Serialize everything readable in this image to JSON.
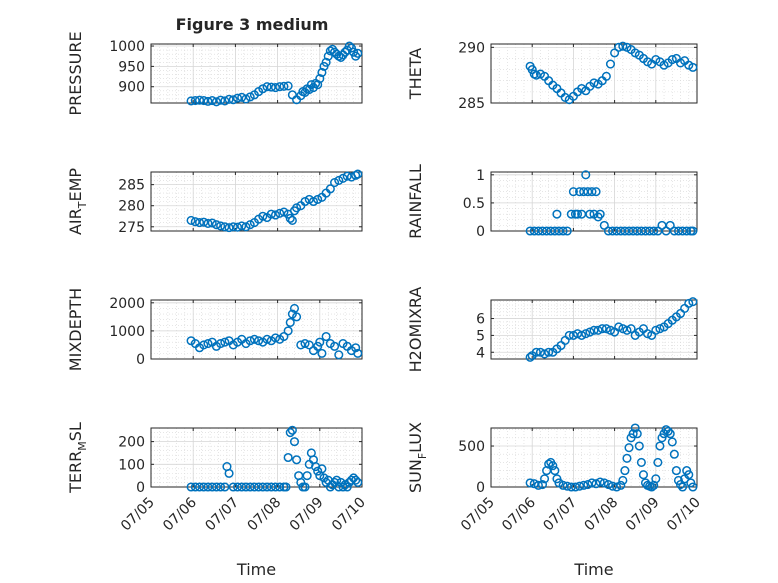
{
  "figure_title": "Figure 3 medium",
  "chart_data": [
    {
      "id": "pressure",
      "type": "scatter",
      "ylabel": "PRESSURE",
      "ylabel_sub": "",
      "ylabel_tail": "",
      "xlabel": "",
      "xlim": [
        "07/05",
        "07/10"
      ],
      "ylim": [
        860,
        1005
      ],
      "yticks": [
        900,
        950,
        1000
      ],
      "ytick_labels": [
        "900",
        "950",
        "1000"
      ],
      "xtick_labels": [],
      "grid": true,
      "x": [
        0.95,
        1.05,
        1.15,
        1.25,
        1.35,
        1.45,
        1.55,
        1.65,
        1.75,
        1.85,
        1.95,
        2.05,
        2.15,
        2.25,
        2.35,
        2.45,
        2.55,
        2.65,
        2.75,
        2.85,
        2.95,
        3.05,
        3.15,
        3.25,
        3.35,
        3.45,
        3.55,
        3.6,
        3.65,
        3.7,
        3.75,
        3.8,
        3.85,
        3.9,
        3.95,
        4.0,
        4.05,
        4.1,
        4.15,
        4.2,
        4.25,
        4.3,
        4.35,
        4.4,
        4.45,
        4.5,
        4.55,
        4.6,
        4.65,
        4.7,
        4.75,
        4.8,
        4.85,
        4.9
      ],
      "y": [
        865,
        866,
        867,
        866,
        864,
        866,
        863,
        867,
        865,
        869,
        868,
        872,
        874,
        870,
        875,
        880,
        888,
        895,
        900,
        899,
        898,
        900,
        901,
        902,
        880,
        868,
        878,
        888,
        886,
        895,
        893,
        905,
        898,
        908,
        905,
        920,
        935,
        950,
        960,
        975,
        988,
        992,
        985,
        980,
        975,
        972,
        978,
        985,
        990,
        1000,
        995,
        985,
        975,
        982
      ]
    },
    {
      "id": "theta",
      "type": "scatter",
      "ylabel": "THETA",
      "ylabel_sub": "",
      "ylabel_tail": "",
      "xlabel": "",
      "xlim": [
        "07/05",
        "07/10"
      ],
      "ylim": [
        285,
        290.3
      ],
      "yticks": [
        285,
        290
      ],
      "ytick_labels": [
        "285",
        "290"
      ],
      "xtick_labels": [],
      "grid": true,
      "x": [
        0.95,
        1.0,
        1.05,
        1.1,
        1.2,
        1.3,
        1.4,
        1.5,
        1.6,
        1.7,
        1.8,
        1.9,
        2.0,
        2.1,
        2.2,
        2.3,
        2.4,
        2.5,
        2.6,
        2.7,
        2.8,
        2.9,
        3.0,
        3.1,
        3.2,
        3.3,
        3.4,
        3.5,
        3.6,
        3.7,
        3.8,
        3.9,
        4.0,
        4.1,
        4.2,
        4.3,
        4.4,
        4.5,
        4.6,
        4.7,
        4.8,
        4.9
      ],
      "y": [
        288.3,
        288.0,
        287.6,
        287.5,
        287.6,
        287.4,
        287.0,
        286.6,
        286.3,
        285.9,
        285.5,
        285.3,
        285.6,
        286.0,
        286.3,
        286.1,
        286.5,
        286.8,
        286.7,
        287.0,
        287.4,
        288.5,
        289.5,
        290.0,
        290.1,
        290.0,
        289.8,
        289.5,
        289.3,
        289.0,
        288.7,
        288.5,
        288.9,
        288.7,
        288.4,
        288.6,
        288.9,
        289.0,
        288.6,
        288.8,
        288.4,
        288.2
      ]
    },
    {
      "id": "air_temp",
      "type": "scatter",
      "ylabel": "AIR",
      "ylabel_sub": "T",
      "ylabel_tail": "EMP",
      "xlabel": "",
      "xlim": [
        "07/05",
        "07/10"
      ],
      "ylim": [
        274,
        288
      ],
      "yticks": [
        275,
        280,
        285
      ],
      "ytick_labels": [
        "275",
        "280",
        "285"
      ],
      "xtick_labels": [],
      "grid": true,
      "x": [
        0.95,
        1.05,
        1.15,
        1.25,
        1.35,
        1.45,
        1.55,
        1.65,
        1.75,
        1.85,
        1.95,
        2.05,
        2.15,
        2.25,
        2.35,
        2.45,
        2.55,
        2.65,
        2.75,
        2.85,
        2.95,
        3.05,
        3.15,
        3.25,
        3.3,
        3.35,
        3.4,
        3.45,
        3.55,
        3.65,
        3.75,
        3.85,
        3.95,
        4.05,
        4.15,
        4.25,
        4.35,
        4.45,
        4.55,
        4.65,
        4.75,
        4.85,
        4.9
      ],
      "y": [
        276.5,
        276.2,
        276.0,
        276.1,
        275.8,
        275.9,
        275.5,
        275.2,
        275.0,
        274.8,
        275.0,
        274.9,
        275.2,
        275.0,
        275.5,
        276.0,
        276.8,
        277.5,
        277.2,
        278.0,
        277.8,
        278.2,
        278.5,
        278.0,
        277.0,
        276.5,
        278.8,
        279.5,
        280.0,
        281.0,
        281.5,
        281.0,
        281.5,
        282.0,
        283.0,
        284.0,
        285.5,
        286.0,
        286.5,
        287.0,
        286.8,
        287.2,
        287.5
      ]
    },
    {
      "id": "rainfall",
      "type": "scatter",
      "ylabel": "RAINFALL",
      "ylabel_sub": "",
      "ylabel_tail": "",
      "xlabel": "",
      "xlim": [
        "07/05",
        "07/10"
      ],
      "ylim": [
        0,
        1.05
      ],
      "yticks": [
        0,
        0.5,
        1
      ],
      "ytick_labels": [
        "0",
        "0.5",
        "1"
      ],
      "xtick_labels": [],
      "grid": true,
      "x": [
        0.95,
        1.05,
        1.15,
        1.25,
        1.35,
        1.45,
        1.55,
        1.6,
        1.65,
        1.75,
        1.85,
        1.95,
        2.0,
        2.05,
        2.1,
        2.15,
        2.2,
        2.25,
        2.3,
        2.35,
        2.4,
        2.45,
        2.5,
        2.55,
        2.6,
        2.65,
        2.75,
        2.85,
        2.95,
        3.05,
        3.15,
        3.25,
        3.35,
        3.45,
        3.55,
        3.65,
        3.75,
        3.85,
        3.95,
        4.05,
        4.15,
        4.25,
        4.35,
        4.45,
        4.55,
        4.65,
        4.75,
        4.85,
        4.9
      ],
      "y": [
        0,
        0,
        0,
        0,
        0,
        0,
        0,
        0.3,
        0,
        0,
        0,
        0.3,
        0.7,
        0.3,
        0.3,
        0.7,
        0.3,
        0.7,
        1.0,
        0.7,
        0.3,
        0.7,
        0.3,
        0.7,
        0.25,
        0.3,
        0.1,
        0,
        0,
        0,
        0,
        0,
        0,
        0,
        0,
        0,
        0,
        0,
        0,
        0,
        0.1,
        0,
        0.1,
        0,
        0,
        0,
        0,
        0,
        0
      ]
    },
    {
      "id": "mixdepth",
      "type": "scatter",
      "ylabel": "MIXDEPTH",
      "ylabel_sub": "",
      "ylabel_tail": "",
      "xlabel": "",
      "xlim": [
        "07/05",
        "07/10"
      ],
      "ylim": [
        0,
        2100
      ],
      "yticks": [
        0,
        1000,
        2000
      ],
      "ytick_labels": [
        "0",
        "1000",
        "2000"
      ],
      "xtick_labels": [],
      "grid": true,
      "x": [
        0.95,
        1.05,
        1.15,
        1.25,
        1.35,
        1.45,
        1.55,
        1.65,
        1.75,
        1.85,
        1.95,
        2.05,
        2.15,
        2.25,
        2.35,
        2.45,
        2.55,
        2.65,
        2.75,
        2.85,
        2.95,
        3.05,
        3.15,
        3.25,
        3.3,
        3.35,
        3.4,
        3.45,
        3.55,
        3.65,
        3.75,
        3.85,
        3.95,
        4.0,
        4.05,
        4.15,
        4.25,
        4.35,
        4.45,
        4.55,
        4.65,
        4.75,
        4.85,
        4.9
      ],
      "y": [
        650,
        550,
        400,
        500,
        550,
        600,
        450,
        550,
        600,
        650,
        500,
        600,
        700,
        550,
        650,
        700,
        650,
        600,
        700,
        650,
        750,
        700,
        800,
        1000,
        1300,
        1600,
        1800,
        1500,
        500,
        550,
        500,
        300,
        450,
        600,
        200,
        800,
        550,
        450,
        150,
        550,
        450,
        300,
        400,
        200
      ]
    },
    {
      "id": "h2omixra",
      "type": "scatter",
      "ylabel": "H2OMIXRA",
      "ylabel_sub": "",
      "ylabel_tail": "",
      "xlabel": "",
      "xlim": [
        "07/05",
        "07/10"
      ],
      "ylim": [
        3.6,
        7.1
      ],
      "yticks": [
        4,
        5,
        6
      ],
      "ytick_labels": [
        "4",
        "5",
        "6"
      ],
      "xtick_labels": [],
      "grid": true,
      "x": [
        0.95,
        1.0,
        1.1,
        1.2,
        1.3,
        1.4,
        1.5,
        1.6,
        1.7,
        1.8,
        1.9,
        2.0,
        2.1,
        2.2,
        2.3,
        2.4,
        2.5,
        2.6,
        2.7,
        2.8,
        2.9,
        3.0,
        3.1,
        3.2,
        3.3,
        3.4,
        3.5,
        3.6,
        3.7,
        3.8,
        3.9,
        4.0,
        4.1,
        4.2,
        4.3,
        4.4,
        4.5,
        4.6,
        4.7,
        4.8,
        4.9
      ],
      "y": [
        3.7,
        3.8,
        4.0,
        4.0,
        3.9,
        4.0,
        4.0,
        4.2,
        4.4,
        4.7,
        5.0,
        5.0,
        5.1,
        5.0,
        5.1,
        5.2,
        5.3,
        5.3,
        5.4,
        5.4,
        5.3,
        5.2,
        5.5,
        5.4,
        5.3,
        5.4,
        5.0,
        5.2,
        5.4,
        5.1,
        5.0,
        5.3,
        5.4,
        5.5,
        5.7,
        5.9,
        6.1,
        6.3,
        6.6,
        6.9,
        7.0
      ]
    },
    {
      "id": "terr_msl",
      "type": "scatter",
      "ylabel": "TERR",
      "ylabel_sub": "M",
      "ylabel_tail": "SL",
      "xlabel": "Time",
      "xlim": [
        "07/05",
        "07/10"
      ],
      "ylim": [
        0,
        260
      ],
      "yticks": [
        0,
        100,
        200
      ],
      "ytick_labels": [
        "0",
        "100",
        "200"
      ],
      "xtick_labels": [
        "07/05",
        "07/06",
        "07/07",
        "07/08",
        "07/09",
        "07/10"
      ],
      "grid": true,
      "x": [
        0.95,
        1.05,
        1.15,
        1.25,
        1.35,
        1.45,
        1.55,
        1.65,
        1.75,
        1.8,
        1.85,
        1.95,
        2.05,
        2.15,
        2.25,
        2.35,
        2.45,
        2.55,
        2.65,
        2.75,
        2.85,
        2.95,
        3.05,
        3.15,
        3.2,
        3.25,
        3.3,
        3.35,
        3.4,
        3.45,
        3.5,
        3.55,
        3.6,
        3.65,
        3.7,
        3.75,
        3.8,
        3.85,
        3.9,
        3.95,
        4.0,
        4.05,
        4.1,
        4.15,
        4.2,
        4.25,
        4.3,
        4.35,
        4.4,
        4.45,
        4.5,
        4.55,
        4.6,
        4.65,
        4.7,
        4.75,
        4.8,
        4.85,
        4.9
      ],
      "y": [
        0,
        0,
        0,
        0,
        0,
        0,
        0,
        0,
        0,
        90,
        60,
        0,
        0,
        0,
        0,
        0,
        0,
        0,
        0,
        0,
        0,
        0,
        0,
        0,
        0,
        130,
        240,
        250,
        200,
        120,
        50,
        20,
        0,
        0,
        50,
        100,
        150,
        120,
        90,
        70,
        50,
        80,
        40,
        20,
        30,
        0,
        10,
        20,
        30,
        0,
        20,
        0,
        10,
        0,
        20,
        30,
        40,
        30,
        20
      ]
    },
    {
      "id": "sun_flux",
      "type": "scatter",
      "ylabel": "SUN",
      "ylabel_sub": "F",
      "ylabel_tail": "LUX",
      "xlabel": "Time",
      "xlim": [
        "07/05",
        "07/10"
      ],
      "ylim": [
        0,
        720
      ],
      "yticks": [
        0,
        500
      ],
      "ytick_labels": [
        "0",
        "500"
      ],
      "xtick_labels": [
        "07/05",
        "07/06",
        "07/07",
        "07/08",
        "07/09",
        "07/10"
      ],
      "grid": true,
      "x": [
        0.95,
        1.05,
        1.15,
        1.25,
        1.3,
        1.35,
        1.4,
        1.45,
        1.5,
        1.55,
        1.6,
        1.65,
        1.75,
        1.85,
        1.95,
        2.05,
        2.15,
        2.25,
        2.35,
        2.45,
        2.55,
        2.65,
        2.75,
        2.85,
        2.95,
        3.05,
        3.15,
        3.2,
        3.25,
        3.3,
        3.35,
        3.4,
        3.45,
        3.5,
        3.55,
        3.6,
        3.65,
        3.7,
        3.75,
        3.8,
        3.85,
        3.9,
        3.95,
        4.0,
        4.05,
        4.1,
        4.15,
        4.2,
        4.25,
        4.3,
        4.35,
        4.4,
        4.45,
        4.5,
        4.55,
        4.6,
        4.65,
        4.7,
        4.75,
        4.8,
        4.85,
        4.9
      ],
      "y": [
        50,
        40,
        20,
        30,
        100,
        200,
        280,
        300,
        260,
        200,
        100,
        50,
        20,
        10,
        0,
        0,
        10,
        20,
        30,
        50,
        40,
        60,
        50,
        30,
        10,
        0,
        20,
        80,
        200,
        350,
        480,
        600,
        650,
        720,
        650,
        500,
        300,
        150,
        50,
        20,
        10,
        0,
        20,
        100,
        300,
        500,
        600,
        650,
        700,
        680,
        650,
        550,
        400,
        200,
        80,
        30,
        0,
        100,
        200,
        150,
        50,
        0
      ]
    }
  ]
}
